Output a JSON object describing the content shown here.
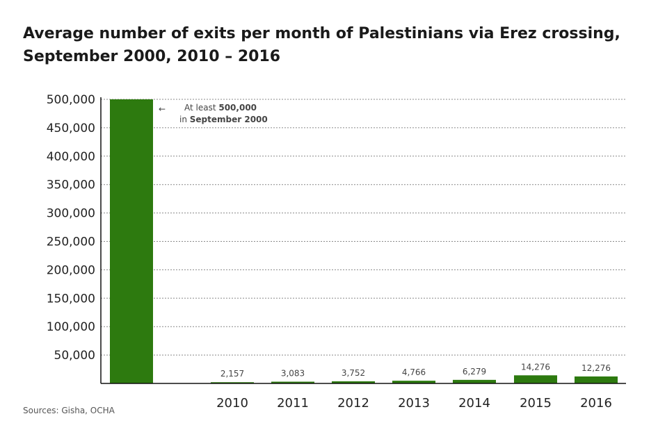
{
  "chart_data": {
    "type": "bar",
    "title": "Average number of exits per month of Palestinians via Erez crossing,",
    "subtitle": "September 2000, 2010 – 2016",
    "categories": [
      "",
      "2010",
      "2011",
      "2012",
      "2013",
      "2014",
      "2015",
      "2016"
    ],
    "values": [
      500000,
      2157,
      3083,
      3752,
      4766,
      6279,
      14276,
      12276
    ],
    "data_labels": [
      "",
      "2,157",
      "3,083",
      "3,752",
      "4,766",
      "6,279",
      "14,276",
      "12,276"
    ],
    "yticks": [
      "50,000",
      "100,000",
      "150,000",
      "200,000",
      "250,000",
      "300,000",
      "350,000",
      "400,000",
      "450,000",
      "500,000"
    ],
    "ylim": [
      0,
      500000
    ],
    "xlabel": "",
    "ylabel": "",
    "grid": true,
    "bar_color": "#2d7a0f",
    "annotation": {
      "arrow": "←",
      "line1_prefix": "At least ",
      "line1_bold": "500,000",
      "line2_prefix": "in ",
      "line2_bold": "September 2000"
    },
    "source": "Sources: Gisha, OCHA"
  }
}
